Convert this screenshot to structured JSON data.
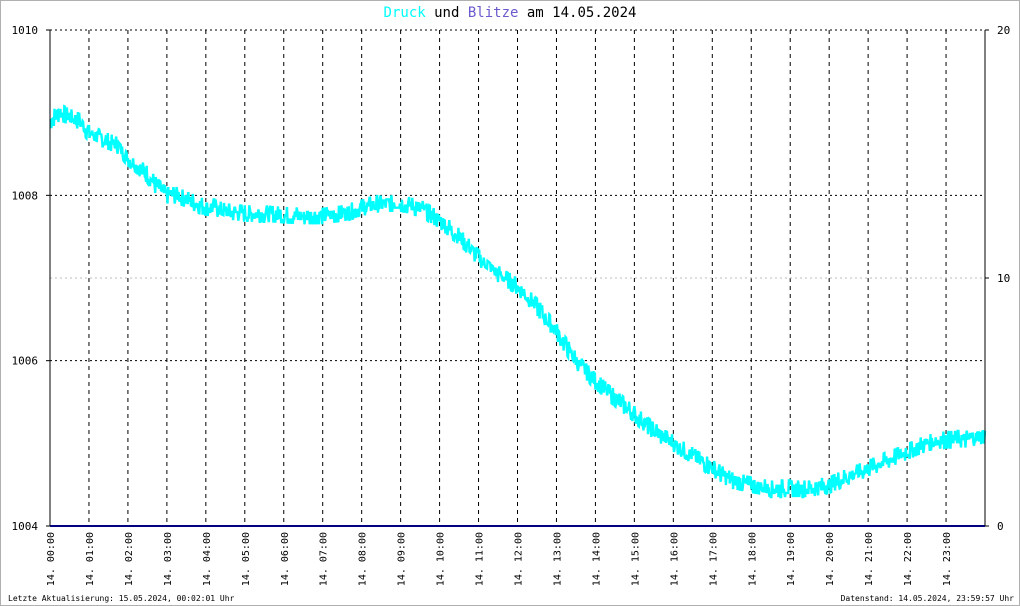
{
  "title": {
    "series1": "Druck",
    "joiner": "und",
    "series2": "Blitze",
    "prefix": "am",
    "date": "14.05.2024"
  },
  "footer": {
    "left": "Letzte Aktualisierung: 15.05.2024, 00:02:01 Uhr",
    "right": "Datenstand: 14.05.2024, 23:59:57 Uhr"
  },
  "colors": {
    "druck": "#00ffff",
    "blitze": "#6a5acd",
    "blitze_line": "#000080",
    "grid": "#000000"
  },
  "chart_data": {
    "type": "line",
    "title": "Druck und Blitze am 14.05.2024",
    "ylim": [
      1004,
      1010
    ],
    "y_ticks": [
      1004,
      1006,
      1008,
      1010
    ],
    "y2lim": [
      0,
      20
    ],
    "y2_ticks": [
      0,
      10,
      20
    ],
    "x_tick_labels": [
      "14. 00:00",
      "14. 01:00",
      "14. 02:00",
      "14. 03:00",
      "14. 04:00",
      "14. 05:00",
      "14. 06:00",
      "14. 07:00",
      "14. 08:00",
      "14. 09:00",
      "14. 10:00",
      "14. 11:00",
      "14. 12:00",
      "14. 13:00",
      "14. 14:00",
      "14. 15:00",
      "14. 16:00",
      "14. 17:00",
      "14. 18:00",
      "14. 19:00",
      "14. 20:00",
      "14. 21:00",
      "14. 22:00",
      "14. 23:00"
    ],
    "series": [
      {
        "name": "Druck",
        "axis": "left",
        "x_hours": [
          0,
          0.25,
          0.5,
          0.75,
          1,
          1.25,
          1.5,
          1.75,
          2,
          2.25,
          2.5,
          2.75,
          3,
          3.25,
          3.5,
          3.75,
          4,
          4.25,
          4.5,
          4.75,
          5,
          5.5,
          6,
          6.5,
          7,
          7.5,
          8,
          8.5,
          9,
          9.5,
          10,
          10.5,
          11,
          11.5,
          12,
          12.5,
          13,
          13.5,
          14,
          14.5,
          15,
          15.5,
          16,
          16.5,
          17,
          17.5,
          18,
          18.5,
          19,
          19.5,
          20,
          20.5,
          21,
          21.5,
          22,
          22.5,
          23,
          23.5,
          24
        ],
        "values": [
          1008.9,
          1009.0,
          1008.95,
          1008.9,
          1008.75,
          1008.7,
          1008.65,
          1008.6,
          1008.45,
          1008.35,
          1008.25,
          1008.1,
          1008.0,
          1008.0,
          1007.95,
          1007.9,
          1007.85,
          1007.85,
          1007.8,
          1007.8,
          1007.78,
          1007.78,
          1007.76,
          1007.75,
          1007.75,
          1007.78,
          1007.85,
          1007.9,
          1007.9,
          1007.85,
          1007.7,
          1007.5,
          1007.25,
          1007.05,
          1006.9,
          1006.65,
          1006.35,
          1006.0,
          1005.75,
          1005.55,
          1005.35,
          1005.15,
          1005.0,
          1004.85,
          1004.7,
          1004.55,
          1004.5,
          1004.45,
          1004.45,
          1004.45,
          1004.5,
          1004.6,
          1004.7,
          1004.8,
          1004.9,
          1005.0,
          1005.05,
          1005.05,
          1005.1
        ]
      },
      {
        "name": "Blitze",
        "axis": "right",
        "x_hours": [
          0,
          24
        ],
        "values": [
          0,
          0
        ]
      }
    ]
  }
}
